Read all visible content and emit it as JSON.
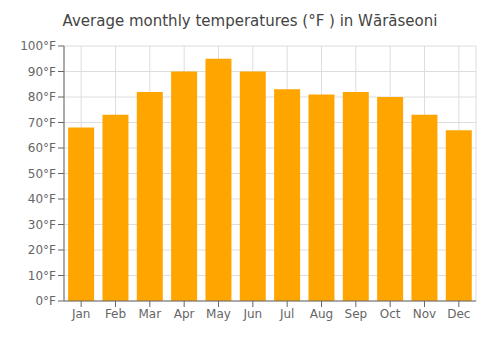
{
  "chart_data": {
    "type": "bar",
    "title": "Average monthly temperatures (°F ) in Wārāseoni",
    "categories": [
      "Jan",
      "Feb",
      "Mar",
      "Apr",
      "May",
      "Jun",
      "Jul",
      "Aug",
      "Sep",
      "Oct",
      "Nov",
      "Dec"
    ],
    "values": [
      68,
      73,
      82,
      90,
      95,
      90,
      83,
      81,
      82,
      80,
      73,
      67
    ],
    "color": "#FFA500",
    "ylim": [
      0,
      100
    ],
    "yticks": [
      {
        "value": 0,
        "label": "0°F"
      },
      {
        "value": 10,
        "label": "10°F"
      },
      {
        "value": 20,
        "label": "20°F"
      },
      {
        "value": 30,
        "label": "30°F"
      },
      {
        "value": 40,
        "label": "40°F"
      },
      {
        "value": 50,
        "label": "50°F"
      },
      {
        "value": 60,
        "label": "60°F"
      },
      {
        "value": 70,
        "label": "70°F"
      },
      {
        "value": 80,
        "label": "80°F"
      },
      {
        "value": 90,
        "label": "90°F"
      },
      {
        "value": 100,
        "label": "100°F"
      }
    ],
    "grid": true
  }
}
